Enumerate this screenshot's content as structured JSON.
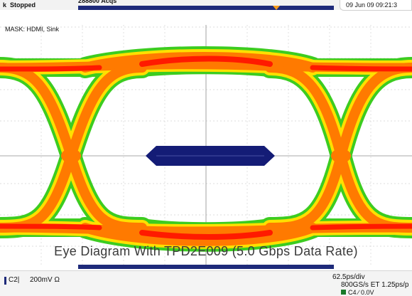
{
  "header": {
    "status_prefix": "k",
    "status": "Stopped",
    "acquisitions": "288800 Acqs",
    "datetime": "09 Jun 09 09:21:3"
  },
  "screen": {
    "mask_label": "MASK: HDMI, Sink",
    "caption": "Eye Diagram With TPD2E009 (5.0 Gbps Data Rate)"
  },
  "footer": {
    "channel": "C2|",
    "scale": "200mV Ω",
    "timebase": "62.5ps/div",
    "sample_rate": "800GS/s ET 1.25ps/p",
    "trigger": "C4 ∕ 0.0V"
  },
  "colors": {
    "mask": "#141c76",
    "hot": "#ff1a00",
    "warm": "#ff7a00",
    "mid": "#ffe000",
    "cool": "#3ccc20",
    "accent": "#1e2a7a"
  }
}
